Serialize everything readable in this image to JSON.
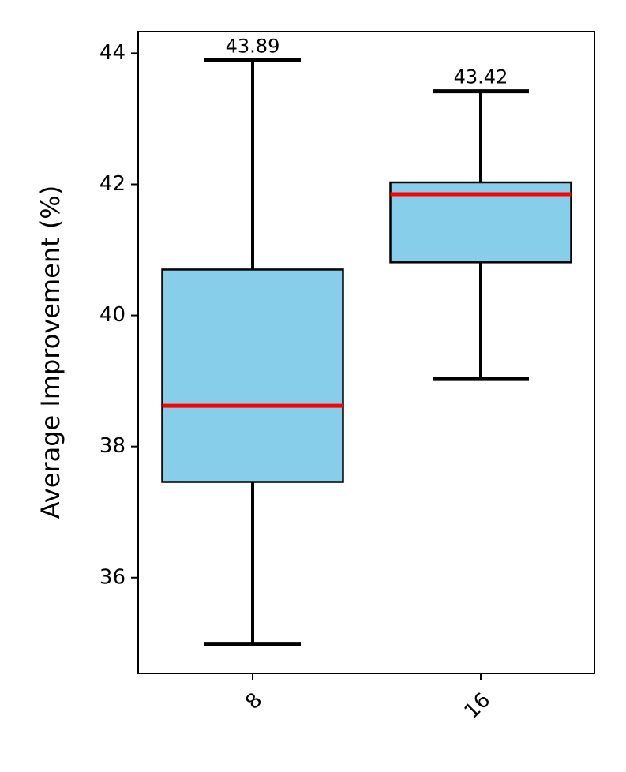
{
  "chart_data": {
    "type": "box",
    "y_label": "Average Improvement (%)",
    "categories": [
      "8",
      "16"
    ],
    "boxes": [
      {
        "whislo": 34.99,
        "q1": 37.46,
        "med": 38.62,
        "q3": 40.7,
        "whishi": 43.89
      },
      {
        "whislo": 39.03,
        "q1": 40.81,
        "med": 41.85,
        "q3": 42.03,
        "whishi": 43.42
      }
    ],
    "box_color": "#87ceeb",
    "median_color": "#ff0000",
    "ylim": [
      34.54,
      44.33
    ],
    "yticks": [
      36,
      38,
      40,
      42,
      44
    ]
  }
}
